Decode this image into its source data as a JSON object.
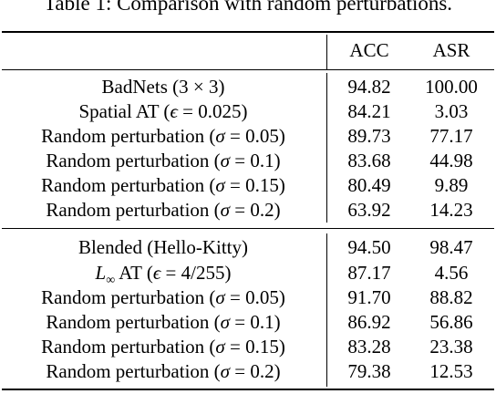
{
  "caption": "Table 1: Comparison with random perturbations.",
  "header": {
    "method": "",
    "acc": "ACC",
    "asr": "ASR"
  },
  "groups": [
    {
      "rows": [
        {
          "method": "BadNets (3 × 3)",
          "acc": "94.82",
          "asr": "100.00"
        },
        {
          "method": "Spatial AT (ϵ = 0.025)",
          "acc": "84.21",
          "asr": "3.03"
        },
        {
          "method": "Random perturbation (σ = 0.05)",
          "acc": "89.73",
          "asr": "77.17"
        },
        {
          "method": "Random perturbation (σ = 0.1)",
          "acc": "83.68",
          "asr": "44.98"
        },
        {
          "method": "Random perturbation (σ = 0.15)",
          "acc": "80.49",
          "asr": "9.89"
        },
        {
          "method": "Random perturbation (σ = 0.2)",
          "acc": "63.92",
          "asr": "14.23"
        }
      ]
    },
    {
      "rows": [
        {
          "method": "Blended (Hello-Kitty)",
          "acc": "94.50",
          "asr": "98.47"
        },
        {
          "method": "L∞ AT (ϵ = 4/255)",
          "acc": "87.17",
          "asr": "4.56"
        },
        {
          "method": "Random perturbation (σ = 0.05)",
          "acc": "91.70",
          "asr": "88.82"
        },
        {
          "method": "Random perturbation (σ = 0.1)",
          "acc": "86.92",
          "asr": "56.86"
        },
        {
          "method": "Random perturbation (σ = 0.15)",
          "acc": "83.28",
          "asr": "23.38"
        },
        {
          "method": "Random perturbation (σ = 0.2)",
          "acc": "79.38",
          "asr": "12.53"
        }
      ]
    }
  ]
}
